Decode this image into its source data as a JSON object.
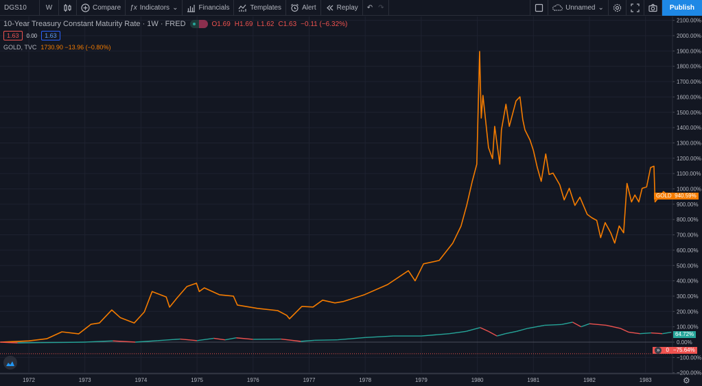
{
  "toolbar": {
    "symbol": "DGS10",
    "interval": "W",
    "compare": "Compare",
    "indicators": "Indicators",
    "financials": "Financials",
    "templates": "Templates",
    "alert": "Alert",
    "replay": "Replay",
    "layout_name": "Unnamed",
    "publish": "Publish"
  },
  "legend": {
    "title": "10-Year Treasury Constant Maturity Rate · 1W · FRED",
    "o": "O1.69",
    "h": "H1.69",
    "l": "L1.62",
    "c": "C1.63",
    "change": "−0.11 (−6.32%)",
    "bid": "1.63",
    "spread": "0.00",
    "ask": "1.63",
    "gold_name": "GOLD, TVC",
    "gold_value": "1730.90 −13.96 (−0.80%)"
  },
  "tags": {
    "gold_label": "GOLD",
    "gold_value": "940.59%",
    "dgs_value": "64.72%",
    "neg_count": "0",
    "neg_value": "−75.64%"
  },
  "colors": {
    "gold": "#f57c00",
    "up": "#26a69a",
    "down": "#ef5350",
    "bg": "#131722",
    "grid": "#1e2230"
  },
  "chart_data": {
    "type": "line",
    "yunit": "%",
    "ylim": [
      -200,
      2100
    ],
    "yticks": [
      "2100.00%",
      "2000.00%",
      "1900.00%",
      "1800.00%",
      "1700.00%",
      "1600.00%",
      "1500.00%",
      "1400.00%",
      "1300.00%",
      "1200.00%",
      "1100.00%",
      "1000.00%",
      "900.00%",
      "800.00%",
      "700.00%",
      "600.00%",
      "500.00%",
      "400.00%",
      "300.00%",
      "200.00%",
      "100.00%",
      "0.00%",
      "−100.00%",
      "−200.00%"
    ],
    "xticks": [
      "1972",
      "1973",
      "1974",
      "1975",
      "1976",
      "1977",
      "1978",
      "1979",
      "1980",
      "1981",
      "1982",
      "1983"
    ],
    "xlim": [
      1971.49,
      1983.68
    ],
    "series": [
      {
        "name": "GOLD",
        "points": [
          [
            1971.49,
            0
          ],
          [
            1972.0,
            8
          ],
          [
            1972.32,
            22
          ],
          [
            1972.59,
            67
          ],
          [
            1972.89,
            54
          ],
          [
            1973.11,
            117
          ],
          [
            1973.26,
            125
          ],
          [
            1973.48,
            210
          ],
          [
            1973.63,
            160
          ],
          [
            1973.88,
            125
          ],
          [
            1974.06,
            197
          ],
          [
            1974.2,
            330
          ],
          [
            1974.45,
            295
          ],
          [
            1974.51,
            228
          ],
          [
            1974.64,
            287
          ],
          [
            1974.82,
            363
          ],
          [
            1974.99,
            385
          ],
          [
            1975.04,
            330
          ],
          [
            1975.13,
            354
          ],
          [
            1975.4,
            309
          ],
          [
            1975.65,
            300
          ],
          [
            1975.72,
            242
          ],
          [
            1976.08,
            220
          ],
          [
            1976.44,
            206
          ],
          [
            1976.6,
            175
          ],
          [
            1976.65,
            152
          ],
          [
            1976.87,
            233
          ],
          [
            1977.07,
            229
          ],
          [
            1977.24,
            274
          ],
          [
            1977.46,
            256
          ],
          [
            1977.61,
            265
          ],
          [
            1977.99,
            310
          ],
          [
            1978.4,
            376
          ],
          [
            1978.77,
            466
          ],
          [
            1978.89,
            400
          ],
          [
            1979.04,
            511
          ],
          [
            1979.32,
            533
          ],
          [
            1979.56,
            645
          ],
          [
            1979.71,
            758
          ],
          [
            1979.81,
            892
          ],
          [
            1979.91,
            1049
          ],
          [
            1979.99,
            1161
          ],
          [
            1980.04,
            1897
          ],
          [
            1980.07,
            1462
          ],
          [
            1980.1,
            1610
          ],
          [
            1980.2,
            1269
          ],
          [
            1980.27,
            1197
          ],
          [
            1980.31,
            1408
          ],
          [
            1980.4,
            1161
          ],
          [
            1980.43,
            1385
          ],
          [
            1980.51,
            1552
          ],
          [
            1980.57,
            1408
          ],
          [
            1980.69,
            1574
          ],
          [
            1980.76,
            1601
          ],
          [
            1980.81,
            1453
          ],
          [
            1980.85,
            1385
          ],
          [
            1980.94,
            1318
          ],
          [
            1981.0,
            1251
          ],
          [
            1981.07,
            1139
          ],
          [
            1981.14,
            1049
          ],
          [
            1981.22,
            1228
          ],
          [
            1981.28,
            1094
          ],
          [
            1981.35,
            1103
          ],
          [
            1981.47,
            1027
          ],
          [
            1981.55,
            928
          ],
          [
            1981.64,
            1004
          ],
          [
            1981.74,
            892
          ],
          [
            1981.83,
            946
          ],
          [
            1981.96,
            834
          ],
          [
            1982.04,
            812
          ],
          [
            1982.13,
            794
          ],
          [
            1982.2,
            682
          ],
          [
            1982.28,
            780
          ],
          [
            1982.38,
            713
          ],
          [
            1982.45,
            646
          ],
          [
            1982.53,
            758
          ],
          [
            1982.61,
            713
          ],
          [
            1982.67,
            1036
          ],
          [
            1982.75,
            915
          ],
          [
            1982.81,
            960
          ],
          [
            1982.88,
            915
          ],
          [
            1982.94,
            1004
          ],
          [
            1983.02,
            1013
          ],
          [
            1983.09,
            1139
          ],
          [
            1983.15,
            1148
          ],
          [
            1983.17,
            915
          ],
          [
            1983.32,
            982
          ],
          [
            1983.4,
            960
          ],
          [
            1983.46,
            940.59
          ]
        ]
      },
      {
        "name": "DGS10",
        "points": [
          [
            1971.49,
            0
          ],
          [
            1971.8,
            -5
          ],
          [
            1972.2,
            -3
          ],
          [
            1972.6,
            -2
          ],
          [
            1973.0,
            0
          ],
          [
            1973.5,
            8
          ],
          [
            1973.9,
            0
          ],
          [
            1974.3,
            10
          ],
          [
            1974.7,
            20
          ],
          [
            1975.0,
            10
          ],
          [
            1975.3,
            25
          ],
          [
            1975.5,
            15
          ],
          [
            1975.7,
            28
          ],
          [
            1976.0,
            18
          ],
          [
            1976.5,
            20
          ],
          [
            1976.85,
            5
          ],
          [
            1977.1,
            12
          ],
          [
            1977.5,
            15
          ],
          [
            1978.0,
            30
          ],
          [
            1978.5,
            40
          ],
          [
            1979.0,
            40
          ],
          [
            1979.5,
            55
          ],
          [
            1979.8,
            70
          ],
          [
            1980.05,
            95
          ],
          [
            1980.2,
            70
          ],
          [
            1980.35,
            40
          ],
          [
            1980.5,
            55
          ],
          [
            1980.7,
            70
          ],
          [
            1980.9,
            90
          ],
          [
            1981.2,
            110
          ],
          [
            1981.5,
            115
          ],
          [
            1981.7,
            130
          ],
          [
            1981.85,
            100
          ],
          [
            1982.0,
            120
          ],
          [
            1982.3,
            110
          ],
          [
            1982.55,
            90
          ],
          [
            1982.7,
            65
          ],
          [
            1982.9,
            55
          ],
          [
            1983.1,
            60
          ],
          [
            1983.3,
            55
          ],
          [
            1983.46,
            64.72
          ]
        ]
      }
    ]
  }
}
